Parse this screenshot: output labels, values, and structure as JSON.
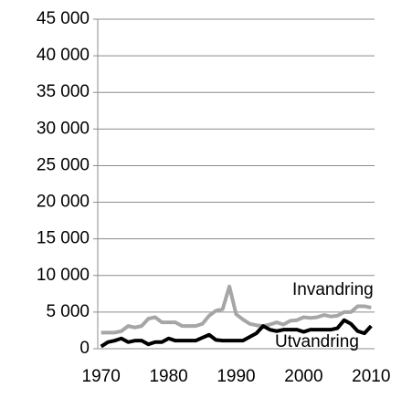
{
  "chart_data": {
    "type": "line",
    "x": [
      1970,
      1971,
      1972,
      1973,
      1974,
      1975,
      1976,
      1977,
      1978,
      1979,
      1980,
      1981,
      1982,
      1983,
      1984,
      1985,
      1986,
      1987,
      1988,
      1989,
      1990,
      1991,
      1992,
      1993,
      1994,
      1995,
      1996,
      1997,
      1998,
      1999,
      2000,
      2001,
      2002,
      2003,
      2004,
      2005,
      2006,
      2007,
      2008,
      2009,
      2010
    ],
    "series": [
      {
        "name": "Invandring",
        "color": "#a6a6a6",
        "values": [
          2200,
          2200,
          2200,
          2400,
          3100,
          2900,
          3100,
          4100,
          4300,
          3600,
          3600,
          3600,
          3100,
          3100,
          3100,
          3400,
          4500,
          5200,
          5400,
          8500,
          4700,
          4000,
          3400,
          3200,
          3100,
          3300,
          3600,
          3300,
          3800,
          3900,
          4300,
          4200,
          4300,
          4600,
          4400,
          4500,
          5000,
          5000,
          5800,
          5800,
          5600
        ]
      },
      {
        "name": "Utvandring",
        "color": "#000000",
        "values": [
          300,
          900,
          1100,
          1400,
          900,
          1100,
          1100,
          600,
          900,
          900,
          1400,
          1100,
          1100,
          1100,
          1100,
          1500,
          1900,
          1200,
          1100,
          1100,
          1100,
          1100,
          1600,
          2100,
          3100,
          2600,
          2400,
          2600,
          2600,
          2600,
          2300,
          2600,
          2600,
          2600,
          2600,
          2800,
          3900,
          3400,
          2400,
          2100,
          3100
        ]
      }
    ],
    "xlim": [
      1969.5,
      2010.5
    ],
    "xticks": [
      1970,
      1980,
      1990,
      2000,
      2010
    ],
    "ylim": [
      0,
      45000
    ],
    "yticks": [
      0,
      {
        "value": 5000,
        "label": "5 000"
      },
      {
        "value": 10000,
        "label": "10 000"
      },
      {
        "value": 15000,
        "label": "15 000"
      },
      {
        "value": 20000,
        "label": "20 000"
      },
      {
        "value": 25000,
        "label": "25 000"
      },
      {
        "value": 30000,
        "label": "30 000"
      },
      {
        "value": 35000,
        "label": "35 000"
      },
      {
        "value": 40000,
        "label": "40 000"
      },
      {
        "value": 45000,
        "label": "45 000"
      }
    ],
    "grid": true
  }
}
